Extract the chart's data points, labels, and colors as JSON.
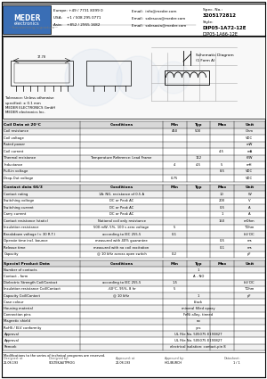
{
  "part_number": "DIP05-1A72-12E",
  "spec_no": "3205172812",
  "style1": "DIP05-1A72-12E",
  "style2": "DIP05-1A66-12E",
  "header_bg": "#3a6eb5",
  "header_text": "#ffffff",
  "europe": "Europe: +49 / 7731 8399 0",
  "usa": "USA:    +1 / 508 295 0771",
  "asia": "Asia:    +852 / 2955 1682",
  "email1": "Email:  info@meder.com",
  "email2": "Email:  salesusa@meder.com",
  "email3": "Email:  salesasia@meder.com",
  "coil_headers": [
    "Coil Data at 20°C",
    "Conditions",
    "Min",
    "Typ",
    "Max",
    "Unit"
  ],
  "coil_rows": [
    [
      "Coil resistance",
      "",
      "450",
      "500",
      "",
      "Ohm"
    ],
    [
      "Coil voltage",
      "",
      "",
      "",
      "",
      "VDC"
    ],
    [
      "Rated power",
      "",
      "",
      "",
      "",
      "mW"
    ],
    [
      "Coil current",
      "",
      "",
      "",
      "4.5",
      "mA"
    ],
    [
      "Thermal resistance",
      "Temperature Reference: Lead Frame",
      "",
      "112",
      "",
      "K/W"
    ],
    [
      "Inductance",
      "",
      "4",
      "4.5",
      "5",
      "mH"
    ],
    [
      "Pull-in voltage",
      "",
      "",
      "",
      "8.5",
      "VDC"
    ],
    [
      "Drop-Out voltage",
      "",
      "0.75",
      "",
      "",
      "VDC"
    ]
  ],
  "contact_headers": [
    "Contact data 66/3",
    "Conditions",
    "Min",
    "Typ",
    "Max",
    "Unit"
  ],
  "contact_rows": [
    [
      "Contact rating",
      "1A: NO, resistance of 0.5 A",
      "",
      "",
      "10",
      "W"
    ],
    [
      "Switching voltage",
      "DC or Peak AC",
      "",
      "",
      "200",
      "V"
    ],
    [
      "Switching current",
      "DC or Peak AC",
      "",
      "",
      "0.5",
      "A"
    ],
    [
      "Carry current",
      "DC or Peak AC",
      "",
      "",
      "1",
      "A"
    ],
    [
      "Contact resistance (static)",
      "National coil only resistance",
      "",
      "",
      "150",
      "mOhm"
    ],
    [
      "Insulation resistance",
      "500 mW, 5%, 100 s zero voltage",
      "5",
      "",
      "",
      "TOhm"
    ],
    [
      "Breakdown voltage (< 30 R.T.)",
      "according to IEC 255.5",
      "0.1",
      "",
      "",
      "kV DC"
    ],
    [
      "Operate time incl. bounce",
      "measured with 40% guarantee",
      "",
      "",
      "0.5",
      "ms"
    ],
    [
      "Release time",
      "measured with no coil excitation",
      "",
      "",
      "0.1",
      "ms"
    ],
    [
      "Capacity",
      "@ 10 kHz across open switch",
      "0.2",
      "",
      "",
      "pF"
    ]
  ],
  "special_headers": [
    "Special Product Data",
    "Conditions",
    "Min",
    "Typ",
    "Max",
    "Unit"
  ],
  "special_rows": [
    [
      "Number of contacts",
      "",
      "",
      "1",
      "",
      ""
    ],
    [
      "Contact - form",
      "",
      "",
      "A - NO",
      "",
      ""
    ],
    [
      "Dielectric Strength Coil/Contact",
      "according to IEC 255.5",
      "1.5",
      "",
      "",
      "kV DC"
    ],
    [
      "Insulation resistance Coil/Contact",
      "-60°C, 95%, 8 hr",
      "5",
      "",
      "",
      "TOhm"
    ],
    [
      "Capacity Coil/Contact",
      "@ 10 kHz",
      "",
      "1",
      "",
      "pF"
    ],
    [
      "Case colour",
      "",
      "",
      "black",
      "",
      ""
    ],
    [
      "Housing material",
      "",
      "",
      "mineral filled epoxy",
      "",
      ""
    ],
    [
      "Connection pins",
      "",
      "",
      "FeNi alloy, tinned",
      "",
      ""
    ],
    [
      "Magnetic shield",
      "",
      "",
      "no",
      "",
      ""
    ],
    [
      "RoHS / ELV conformity",
      "",
      "",
      "yes",
      "",
      ""
    ],
    [
      "Approval",
      "",
      "",
      "UL File No. 505075 E193827",
      "",
      ""
    ],
    [
      "Approval",
      "",
      "",
      "UL File No. 505075 E193827",
      "",
      ""
    ],
    [
      "Remark",
      "",
      "",
      "electrical isolation: contact-pin 8",
      "",
      ""
    ]
  ],
  "footer_text": "Modifications to the series of technical programs are reserved.",
  "footer_fields": [
    "Designed: at",
    "21.08.193",
    "Designed by:",
    "SOLTEK-AUTPROG",
    "Approved: at",
    "21.08.193",
    "Approved by:",
    "HCL/BURCH"
  ],
  "page": "1 / 1",
  "bg": "#ffffff",
  "table_hdr_bg": "#d8d8d8",
  "row_alt": "#f0f0f0",
  "row_norm": "#ffffff"
}
